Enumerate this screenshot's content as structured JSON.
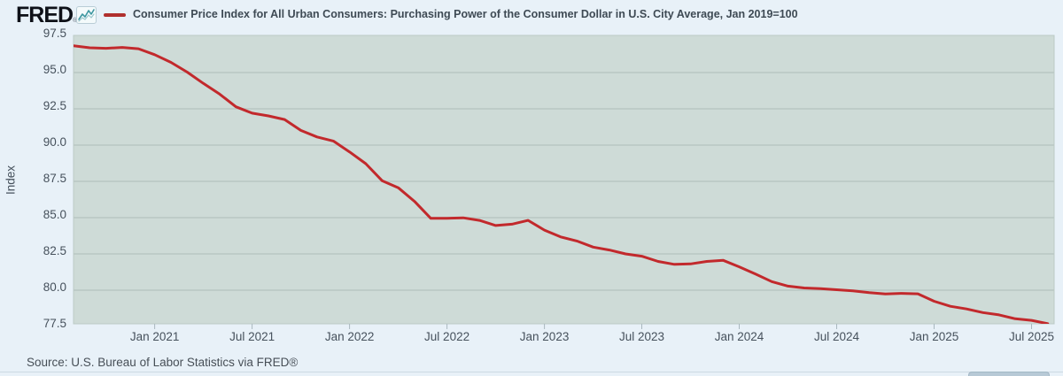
{
  "header": {
    "logo_text": "FRED",
    "logo_trademark": "®",
    "legend_label": "Consumer Price Index for All Urban Consumers: Purchasing Power of the Consumer Dollar in U.S. City Average, Jan 2019=100",
    "legend_color": "#b0302e"
  },
  "chart_data": {
    "type": "line",
    "title": "Consumer Price Index for All Urban Consumers: Purchasing Power of the Consumer Dollar in U.S. City Average, Jan 2019=100",
    "xlabel": "",
    "ylabel": "Index",
    "ylim": [
      77.5,
      97.5
    ],
    "grid": true,
    "legend_position": "top",
    "plot_bg_color": "#cedbd7",
    "gridline_color": "#b9c8c4",
    "line_color": "#c2292c",
    "y_ticks": [
      "97.5",
      "95.0",
      "92.5",
      "90.0",
      "87.5",
      "85.0",
      "82.5",
      "80.0",
      "77.5"
    ],
    "x_ticks": [
      "Jan 2021",
      "Jul 2021",
      "Jan 2022",
      "Jul 2022",
      "Jan 2023",
      "Jul 2023",
      "Jan 2024",
      "Jul 2024",
      "Jan 2025",
      "Jul 2025"
    ],
    "series": [
      {
        "name": "Purchasing Power of the Consumer Dollar (Jan 2019=100)",
        "x": [
          "2020-08",
          "2020-09",
          "2020-10",
          "2020-11",
          "2020-12",
          "2021-01",
          "2021-02",
          "2021-03",
          "2021-04",
          "2021-05",
          "2021-06",
          "2021-07",
          "2021-08",
          "2021-09",
          "2021-10",
          "2021-11",
          "2021-12",
          "2022-01",
          "2022-02",
          "2022-03",
          "2022-04",
          "2022-05",
          "2022-06",
          "2022-07",
          "2022-08",
          "2022-09",
          "2022-10",
          "2022-11",
          "2022-12",
          "2023-01",
          "2023-02",
          "2023-03",
          "2023-04",
          "2023-05",
          "2023-06",
          "2023-07",
          "2023-08",
          "2023-09",
          "2023-10",
          "2023-11",
          "2023-12",
          "2024-01",
          "2024-02",
          "2024-03",
          "2024-04",
          "2024-05",
          "2024-06",
          "2024-07",
          "2024-08",
          "2024-09",
          "2024-10",
          "2024-11",
          "2024-12",
          "2025-01",
          "2025-02",
          "2025-03",
          "2025-04",
          "2025-05",
          "2025-06",
          "2025-07",
          "2025-08"
        ],
        "values": [
          96.84,
          96.71,
          96.67,
          96.73,
          96.64,
          96.23,
          95.7,
          95.03,
          94.25,
          93.51,
          92.64,
          92.2,
          92.01,
          91.76,
          91.01,
          90.56,
          90.28,
          89.53,
          88.72,
          87.55,
          87.06,
          86.12,
          84.95,
          84.96,
          84.99,
          84.81,
          84.46,
          84.55,
          84.81,
          84.14,
          83.67,
          83.39,
          82.97,
          82.77,
          82.5,
          82.34,
          81.98,
          81.78,
          81.81,
          81.98,
          82.06,
          81.61,
          81.11,
          80.59,
          80.28,
          80.15,
          80.11,
          80.03,
          79.96,
          79.83,
          79.74,
          79.78,
          79.75,
          79.24,
          78.89,
          78.71,
          78.46,
          78.3,
          78.03,
          77.92,
          77.69
        ]
      }
    ]
  },
  "footer": {
    "source_text": "Source: U.S. Bureau of Labor Statistics via FRED®"
  }
}
